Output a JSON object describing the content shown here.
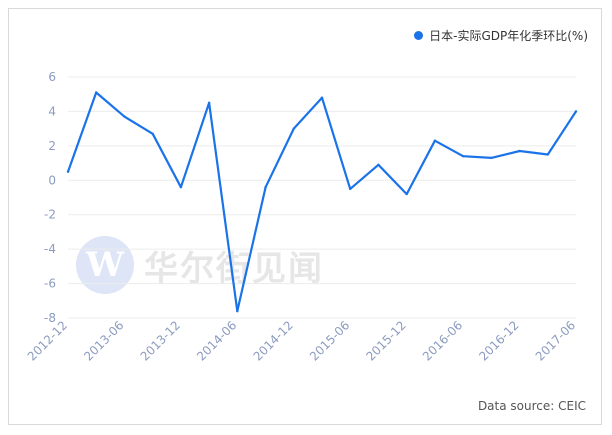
{
  "legend": {
    "label": "日本-实际GDP年化季环比(%)",
    "color": "#1a73e8"
  },
  "source": "Data source: CEIC",
  "watermark": {
    "logo_letter": "W",
    "text": "华尔街见闻"
  },
  "chart_data": {
    "type": "line",
    "title": "",
    "xlabel": "",
    "ylabel": "",
    "ylim": [
      -8,
      6
    ],
    "yticks": [
      6,
      4,
      2,
      0,
      -2,
      -4,
      -6,
      -8
    ],
    "x_tick_labels": [
      "2012-12",
      "2013-06",
      "2013-12",
      "2014-06",
      "2014-12",
      "2015-06",
      "2015-12",
      "2016-06",
      "2016-12",
      "2017-06"
    ],
    "grid": "horizontal",
    "legend_position": "top-right",
    "series": [
      {
        "name": "日本-实际GDP年化季环比(%)",
        "color": "#1a73e8",
        "x": [
          "2012-12",
          "2013-03",
          "2013-06",
          "2013-09",
          "2013-12",
          "2014-03",
          "2014-06",
          "2014-09",
          "2014-12",
          "2015-03",
          "2015-06",
          "2015-09",
          "2015-12",
          "2016-03",
          "2016-06",
          "2016-09",
          "2016-12",
          "2017-03",
          "2017-06"
        ],
        "values": [
          0.5,
          5.1,
          3.7,
          2.7,
          -0.4,
          4.5,
          -7.6,
          -0.4,
          3.0,
          4.8,
          -0.5,
          0.9,
          -0.8,
          2.3,
          1.4,
          1.3,
          1.7,
          1.5,
          4.0
        ]
      }
    ]
  }
}
